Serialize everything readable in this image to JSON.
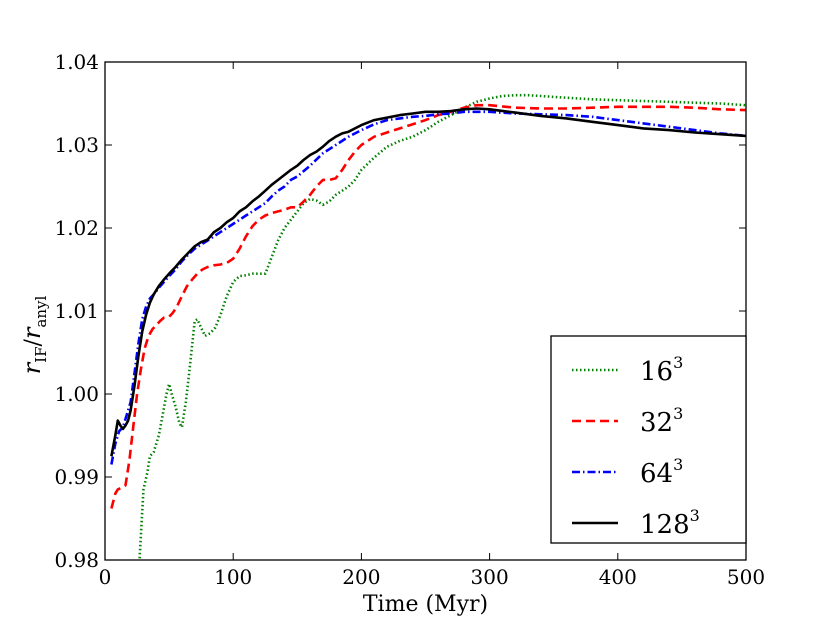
{
  "chart_data": {
    "type": "line",
    "title": "",
    "xlabel": "Time (Myr)",
    "ylabel_main": "r",
    "ylabel_num_sub": "IF",
    "ylabel_sep": "/",
    "ylabel_den_sub": "anyl",
    "xlim": [
      0,
      500
    ],
    "ylim": [
      0.98,
      1.04
    ],
    "xticks": [
      0,
      100,
      200,
      300,
      400,
      500
    ],
    "xtick_labels": [
      "0",
      "100",
      "200",
      "300",
      "400",
      "500"
    ],
    "yticks": [
      0.98,
      0.99,
      1.0,
      1.01,
      1.02,
      1.03,
      1.04
    ],
    "ytick_labels": [
      "0.98",
      "0.99",
      "1.00",
      "1.01",
      "1.02",
      "1.03",
      "1.04"
    ],
    "grid": false,
    "legend_position": "lower-right",
    "series": [
      {
        "name": "16",
        "name_sup": "3",
        "color": "#008000",
        "style": "dotted",
        "x": [
          27,
          30,
          33,
          35,
          38,
          42,
          45,
          48,
          50,
          52,
          55,
          58,
          60,
          63,
          66,
          70,
          72,
          75,
          78,
          82,
          86,
          90,
          95,
          100,
          105,
          110,
          115,
          120,
          125,
          130,
          135,
          140,
          145,
          150,
          155,
          160,
          165,
          170,
          175,
          180,
          185,
          190,
          195,
          200,
          210,
          220,
          230,
          240,
          250,
          260,
          270,
          280,
          290,
          300,
          310,
          320,
          330,
          340,
          350,
          360,
          380,
          400,
          420,
          440,
          460,
          480,
          500
        ],
        "y": [
          0.9802,
          0.9885,
          0.9905,
          0.9925,
          0.993,
          0.995,
          0.9975,
          1.0,
          1.0012,
          1.0,
          0.9985,
          0.9965,
          0.996,
          0.999,
          1.003,
          1.0088,
          1.009,
          1.008,
          1.007,
          1.0073,
          1.008,
          1.0095,
          1.0118,
          1.0135,
          1.0142,
          1.0143,
          1.0145,
          1.0145,
          1.0145,
          1.0165,
          1.0185,
          1.02,
          1.021,
          1.022,
          1.023,
          1.0235,
          1.0233,
          1.0228,
          1.0232,
          1.024,
          1.0245,
          1.025,
          1.0258,
          1.027,
          1.0285,
          1.0298,
          1.0305,
          1.031,
          1.0318,
          1.0328,
          1.0336,
          1.0345,
          1.0352,
          1.0356,
          1.0359,
          1.036,
          1.036,
          1.0359,
          1.0358,
          1.0357,
          1.0355,
          1.0354,
          1.0353,
          1.0352,
          1.0351,
          1.035,
          1.0348
        ]
      },
      {
        "name": "32",
        "name_sup": "3",
        "color": "#ff0000",
        "style": "dashed",
        "x": [
          5,
          8,
          10,
          13,
          16,
          19,
          22,
          25,
          28,
          31,
          34,
          37,
          40,
          43,
          46,
          50,
          53,
          56,
          60,
          64,
          68,
          72,
          76,
          80,
          85,
          90,
          95,
          100,
          105,
          110,
          115,
          120,
          125,
          130,
          135,
          140,
          145,
          150,
          155,
          160,
          165,
          170,
          175,
          180,
          185,
          190,
          195,
          200,
          210,
          220,
          230,
          240,
          250,
          260,
          270,
          280,
          290,
          300,
          320,
          340,
          360,
          380,
          400,
          420,
          440,
          460,
          480,
          500
        ],
        "y": [
          0.9862,
          0.988,
          0.9885,
          0.9887,
          0.989,
          0.992,
          0.996,
          1.0,
          1.003,
          1.0055,
          1.007,
          1.0078,
          1.0083,
          1.0088,
          1.0092,
          1.0093,
          1.0098,
          1.0105,
          1.0118,
          1.013,
          1.0138,
          1.0145,
          1.015,
          1.0153,
          1.0155,
          1.0156,
          1.0158,
          1.0163,
          1.0175,
          1.019,
          1.0202,
          1.021,
          1.0215,
          1.0218,
          1.022,
          1.0222,
          1.0225,
          1.0225,
          1.0232,
          1.024,
          1.025,
          1.0258,
          1.0258,
          1.026,
          1.027,
          1.0282,
          1.0292,
          1.03,
          1.031,
          1.0315,
          1.032,
          1.0325,
          1.033,
          1.0336,
          1.034,
          1.0345,
          1.0348,
          1.0348,
          1.0345,
          1.0344,
          1.0344,
          1.0345,
          1.0346,
          1.0346,
          1.0346,
          1.0345,
          1.0343,
          1.0342
        ]
      },
      {
        "name": "64",
        "name_sup": "3",
        "color": "#0000ff",
        "style": "dashdot",
        "x": [
          5,
          8,
          11,
          14,
          17,
          20,
          23,
          26,
          29,
          32,
          35,
          38,
          42,
          46,
          50,
          55,
          60,
          65,
          70,
          75,
          80,
          85,
          90,
          95,
          100,
          105,
          110,
          115,
          120,
          125,
          130,
          135,
          140,
          145,
          150,
          160,
          170,
          180,
          190,
          200,
          210,
          220,
          230,
          240,
          250,
          260,
          270,
          280,
          290,
          300,
          320,
          340,
          360,
          380,
          400,
          420,
          440,
          460,
          480,
          500
        ],
        "y": [
          0.9915,
          0.994,
          0.9955,
          0.996,
          0.9975,
          0.999,
          1.0025,
          1.006,
          1.009,
          1.0105,
          1.0115,
          1.012,
          1.0128,
          1.0135,
          1.0142,
          1.015,
          1.016,
          1.0168,
          1.0175,
          1.018,
          1.0185,
          1.019,
          1.0195,
          1.02,
          1.0205,
          1.021,
          1.0215,
          1.022,
          1.0225,
          1.023,
          1.0238,
          1.0245,
          1.025,
          1.0258,
          1.0262,
          1.0275,
          1.029,
          1.03,
          1.031,
          1.0318,
          1.0325,
          1.033,
          1.0332,
          1.0334,
          1.0335,
          1.0337,
          1.0338,
          1.034,
          1.034,
          1.034,
          1.0338,
          1.0337,
          1.0336,
          1.0334,
          1.033,
          1.0326,
          1.0322,
          1.0318,
          1.0314,
          1.0311
        ]
      },
      {
        "name": "128",
        "name_sup": "3",
        "color": "#000000",
        "style": "solid",
        "x": [
          5,
          8,
          10,
          12,
          14,
          16,
          18,
          20,
          23,
          26,
          29,
          32,
          35,
          38,
          42,
          46,
          50,
          55,
          60,
          65,
          70,
          75,
          80,
          85,
          90,
          95,
          100,
          105,
          110,
          115,
          120,
          125,
          130,
          135,
          140,
          145,
          150,
          155,
          160,
          165,
          170,
          175,
          180,
          185,
          190,
          195,
          200,
          210,
          220,
          230,
          240,
          250,
          260,
          270,
          280,
          290,
          300,
          320,
          340,
          360,
          380,
          400,
          420,
          440,
          460,
          480,
          500
        ],
        "y": [
          0.9925,
          0.995,
          0.9968,
          0.9962,
          0.9958,
          0.9962,
          0.9968,
          0.998,
          1.001,
          1.0045,
          1.0075,
          1.0095,
          1.011,
          1.012,
          1.013,
          1.0138,
          1.0145,
          1.0153,
          1.0162,
          1.017,
          1.0178,
          1.0183,
          1.0186,
          1.0195,
          1.02,
          1.0207,
          1.0212,
          1.022,
          1.0225,
          1.0232,
          1.0238,
          1.0245,
          1.0252,
          1.0258,
          1.0264,
          1.027,
          1.0275,
          1.0282,
          1.0288,
          1.0292,
          1.0298,
          1.0305,
          1.031,
          1.0314,
          1.0316,
          1.032,
          1.0324,
          1.033,
          1.0333,
          1.0336,
          1.0338,
          1.034,
          1.034,
          1.0341,
          1.0343,
          1.0344,
          1.0343,
          1.0339,
          1.0335,
          1.0332,
          1.0328,
          1.0324,
          1.032,
          1.0318,
          1.0315,
          1.0313,
          1.0311
        ]
      }
    ]
  }
}
